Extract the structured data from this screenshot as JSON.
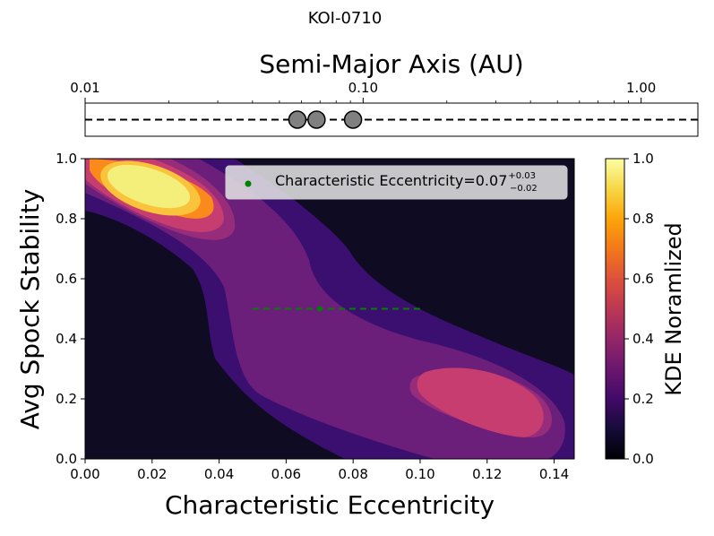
{
  "chart_data": [
    {
      "type": "scatter",
      "title": "KOI-0710",
      "xlabel": "Semi-Major Axis (AU)",
      "xscale": "log",
      "xlim": [
        0.01,
        1.6
      ],
      "xticks": [
        0.01,
        0.1,
        1.0
      ],
      "xtick_labels": [
        "0.01",
        "0.10",
        "1.00"
      ],
      "ylim": [
        0,
        1
      ],
      "reference_line": {
        "y": 0.5,
        "style": "dashed",
        "color": "#000000"
      },
      "points": [
        {
          "x": 0.058,
          "y": 0.5
        },
        {
          "x": 0.068,
          "y": 0.5
        },
        {
          "x": 0.092,
          "y": 0.5
        }
      ],
      "point_color": "#808080"
    },
    {
      "type": "heatmap",
      "subtype": "kde-filled-contour",
      "xlabel": "Characteristic Eccentricity",
      "ylabel": "Avg Spock Stability",
      "xlim": [
        0.0,
        0.146
      ],
      "ylim": [
        0.0,
        1.0
      ],
      "xticks": [
        0.0,
        0.02,
        0.04,
        0.06,
        0.08,
        0.1,
        0.12,
        0.14
      ],
      "xtick_labels": [
        "0.00",
        "0.02",
        "0.04",
        "0.06",
        "0.08",
        "0.10",
        "0.12",
        "0.14"
      ],
      "yticks": [
        0.0,
        0.2,
        0.4,
        0.6,
        0.8,
        1.0
      ],
      "ytick_labels": [
        "0.0",
        "0.2",
        "0.4",
        "0.6",
        "0.8",
        "1.0"
      ],
      "colormap": "inferno",
      "contour_levels": [
        0.0,
        0.125,
        0.25,
        0.375,
        0.5,
        0.625,
        0.75,
        0.875,
        1.0
      ],
      "level_colors": [
        "#0e0b22",
        "#3b0f70",
        "#6b1f7a",
        "#972c7a",
        "#c73d6f",
        "#ea5f3b",
        "#fb8a1c",
        "#f9c43b",
        "#f4ef7a"
      ],
      "modes": [
        {
          "x": 0.02,
          "y": 0.92,
          "density": 1.0
        },
        {
          "x": 0.115,
          "y": 0.22,
          "density": 0.55
        }
      ],
      "estimate": {
        "x": 0.07,
        "y": 0.5,
        "err_minus": 0.02,
        "err_plus": 0.03,
        "color": "#008000"
      },
      "legend": {
        "location": "upper right",
        "label_main": "Characteristic Eccentricity=0.07",
        "label_sup": "+0.03",
        "label_sub": "−0.02"
      },
      "colorbar": {
        "label": "KDE Noramlized",
        "range": [
          0.0,
          1.0
        ],
        "ticks": [
          0.0,
          0.2,
          0.4,
          0.6,
          0.8,
          1.0
        ],
        "tick_labels": [
          "0.0",
          "0.2",
          "0.4",
          "0.6",
          "0.8",
          "1.0"
        ]
      }
    }
  ]
}
